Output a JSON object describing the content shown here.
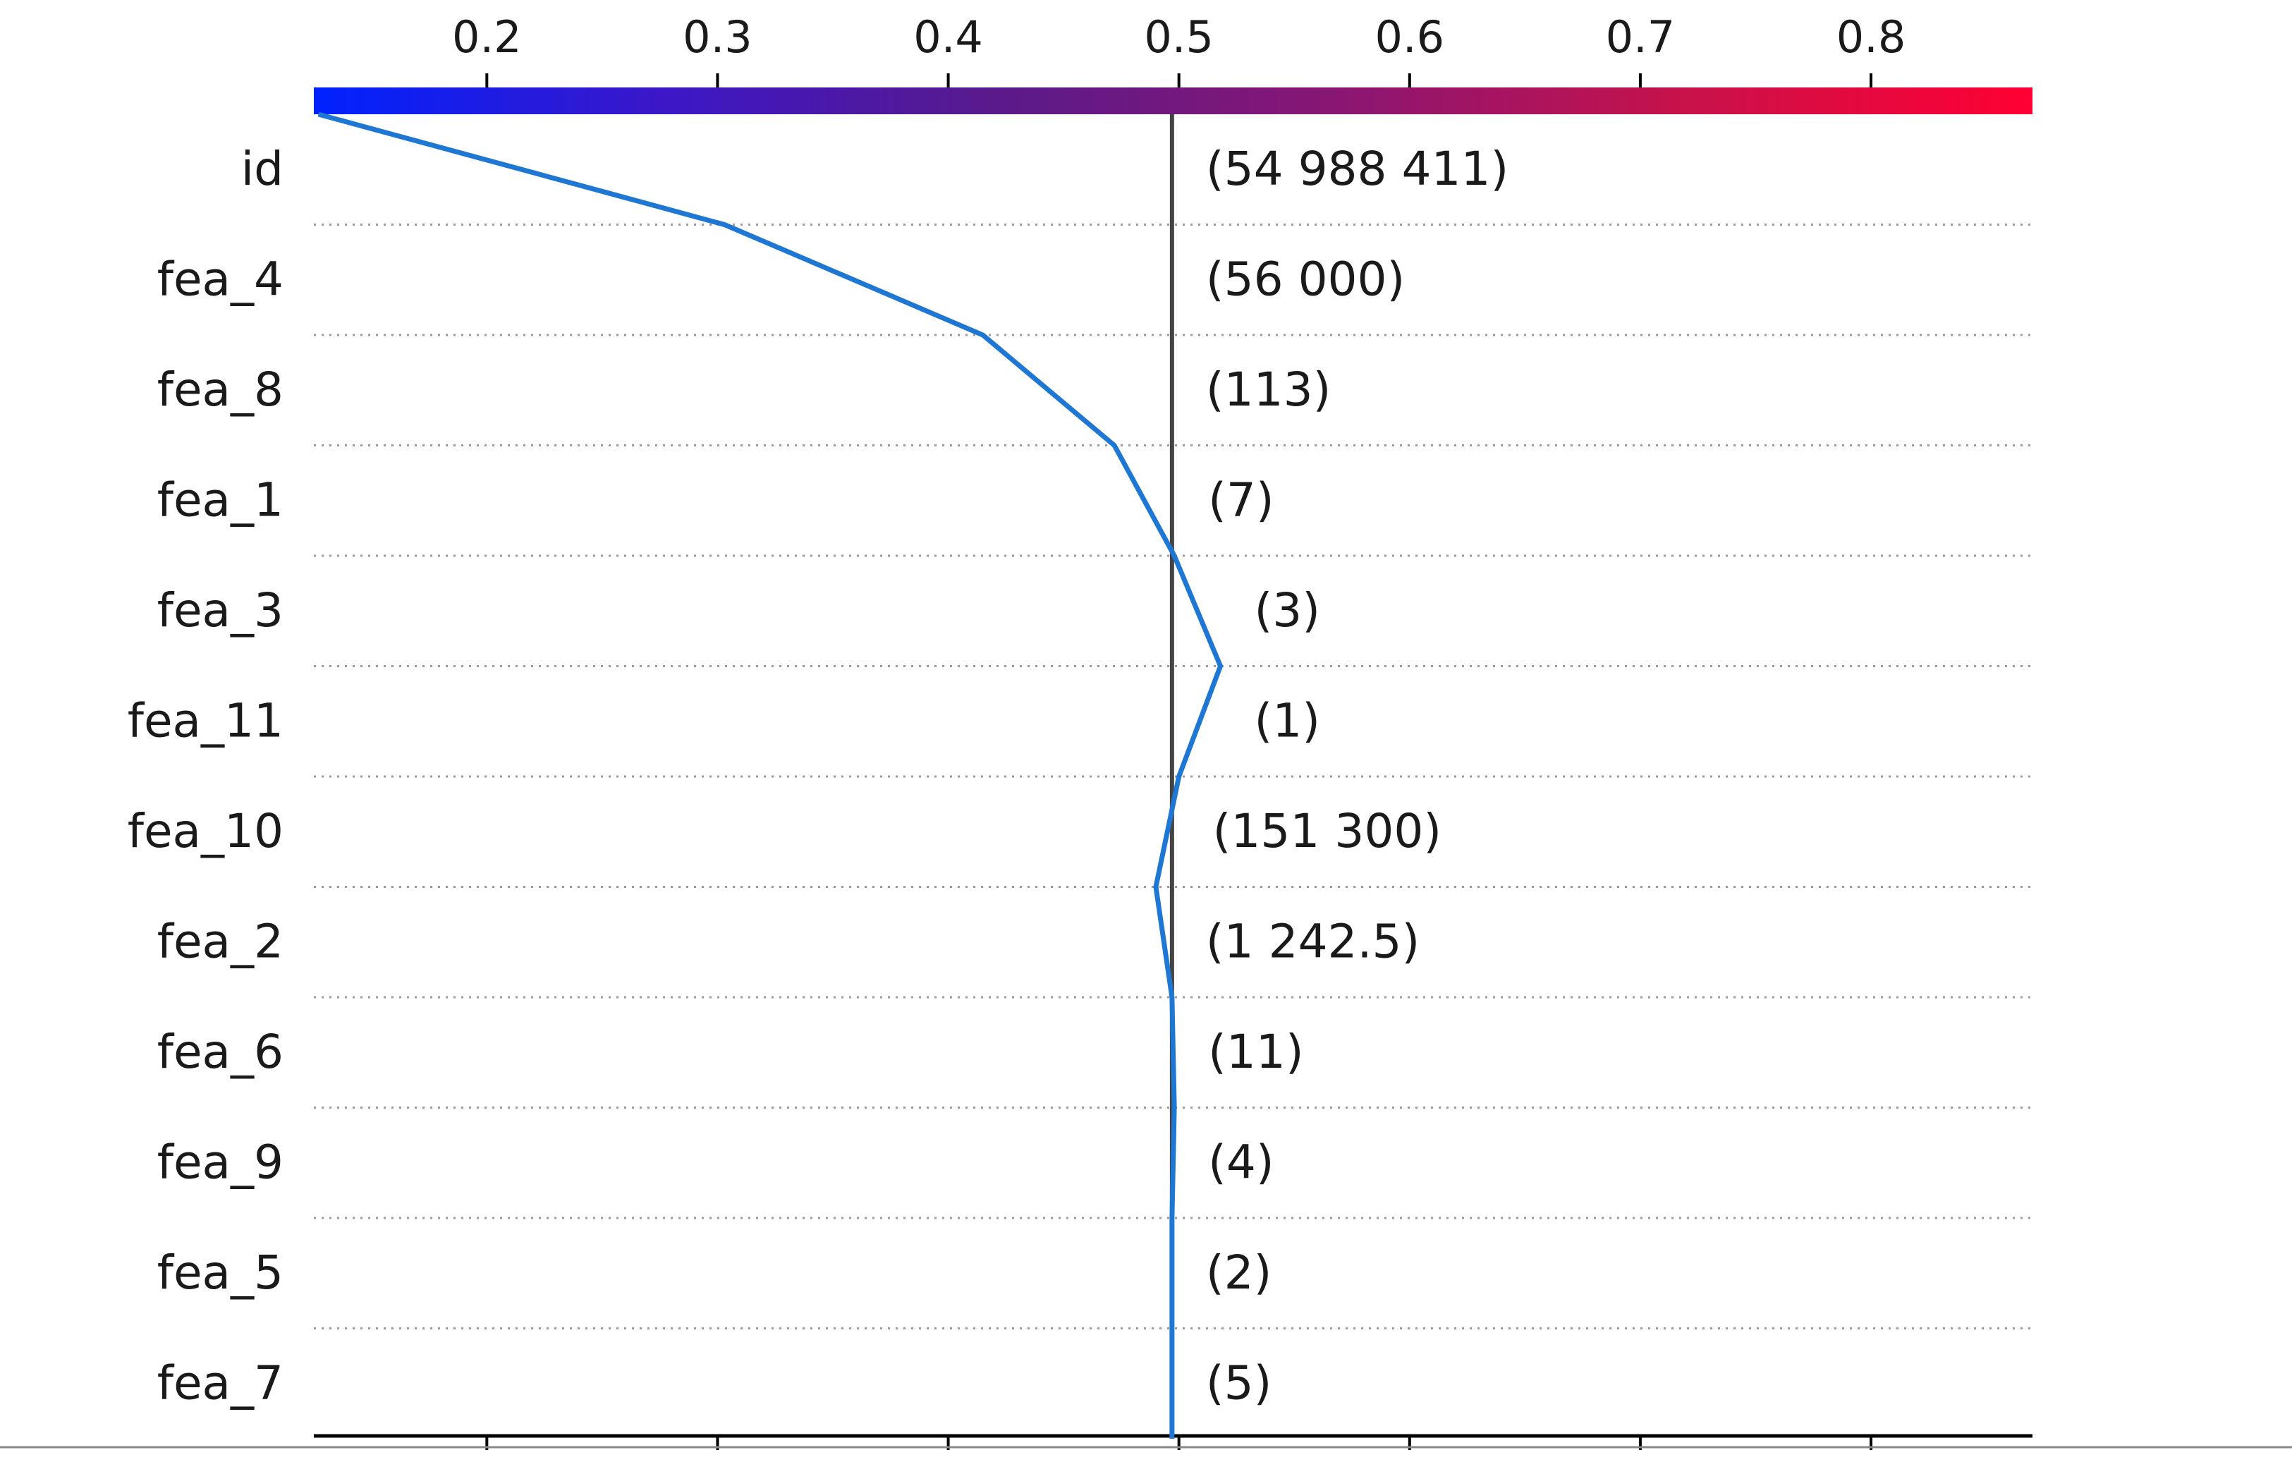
{
  "chart_data": {
    "type": "line",
    "title": "",
    "xlabel": "",
    "ylabel": "",
    "xlim": [
      0.125,
      0.87
    ],
    "base_value": 0.497,
    "x_ticks": [
      0.2,
      0.3,
      0.4,
      0.5,
      0.6,
      0.7,
      0.8
    ],
    "x_tick_labels": [
      "0.2",
      "0.3",
      "0.4",
      "0.5",
      "0.6",
      "0.7",
      "0.8"
    ],
    "colorbar": {
      "range": [
        0.125,
        0.87
      ],
      "colors": [
        "#0022ff",
        "#3a17c8",
        "#5a1a8a",
        "#8a1672",
        "#c8124a",
        "#ff0033"
      ]
    },
    "line_color": "#1f77d4",
    "features": [
      {
        "name": "id",
        "value_label": "(54 988 411)"
      },
      {
        "name": "fea_4",
        "value_label": "(56 000)"
      },
      {
        "name": "fea_8",
        "value_label": "(113)"
      },
      {
        "name": "fea_1",
        "value_label": "(7)"
      },
      {
        "name": "fea_3",
        "value_label": "(3)"
      },
      {
        "name": "fea_11",
        "value_label": "(1)"
      },
      {
        "name": "fea_10",
        "value_label": "(151 300)"
      },
      {
        "name": "fea_2",
        "value_label": "(1 242.5)"
      },
      {
        "name": "fea_6",
        "value_label": "(11)"
      },
      {
        "name": "fea_9",
        "value_label": "(4)"
      },
      {
        "name": "fea_5",
        "value_label": "(2)"
      },
      {
        "name": "fea_7",
        "value_label": "(5)"
      }
    ],
    "path_x": [
      0.127,
      0.303,
      0.415,
      0.472,
      0.498,
      0.518,
      0.5,
      0.49,
      0.497,
      0.498,
      0.497,
      0.497,
      0.497
    ]
  }
}
